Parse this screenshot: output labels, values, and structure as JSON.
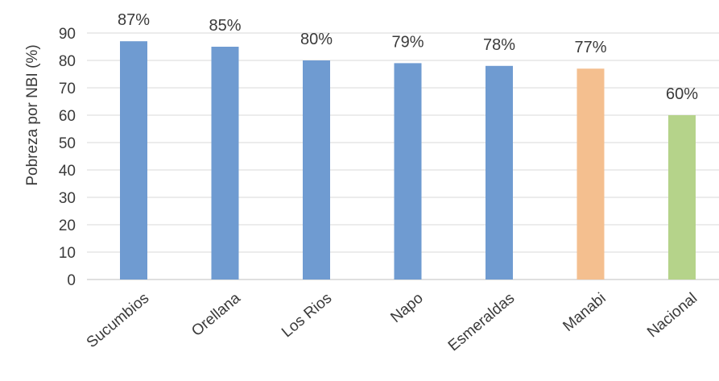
{
  "chart_data": {
    "type": "bar",
    "title": "",
    "xlabel": "",
    "ylabel": "Pobreza por NBI (%)",
    "ylim": [
      0,
      90
    ],
    "yticks": [
      0,
      10,
      20,
      30,
      40,
      50,
      60,
      70,
      80,
      90
    ],
    "grid": true,
    "legend": "none",
    "categories": [
      "Sucumbios",
      "Orellana",
      "Los Rios",
      "Napo",
      "Esmeraldas",
      "Manabi",
      "Nacional"
    ],
    "values": [
      87,
      85,
      80,
      79,
      78,
      77,
      60
    ],
    "data_labels": [
      "87%",
      "85%",
      "80%",
      "79%",
      "78%",
      "77%",
      "60%"
    ],
    "bar_colors": [
      "#6f9bd1",
      "#6f9bd1",
      "#6f9bd1",
      "#6f9bd1",
      "#6f9bd1",
      "#f4bf8f",
      "#b5d38a"
    ]
  }
}
